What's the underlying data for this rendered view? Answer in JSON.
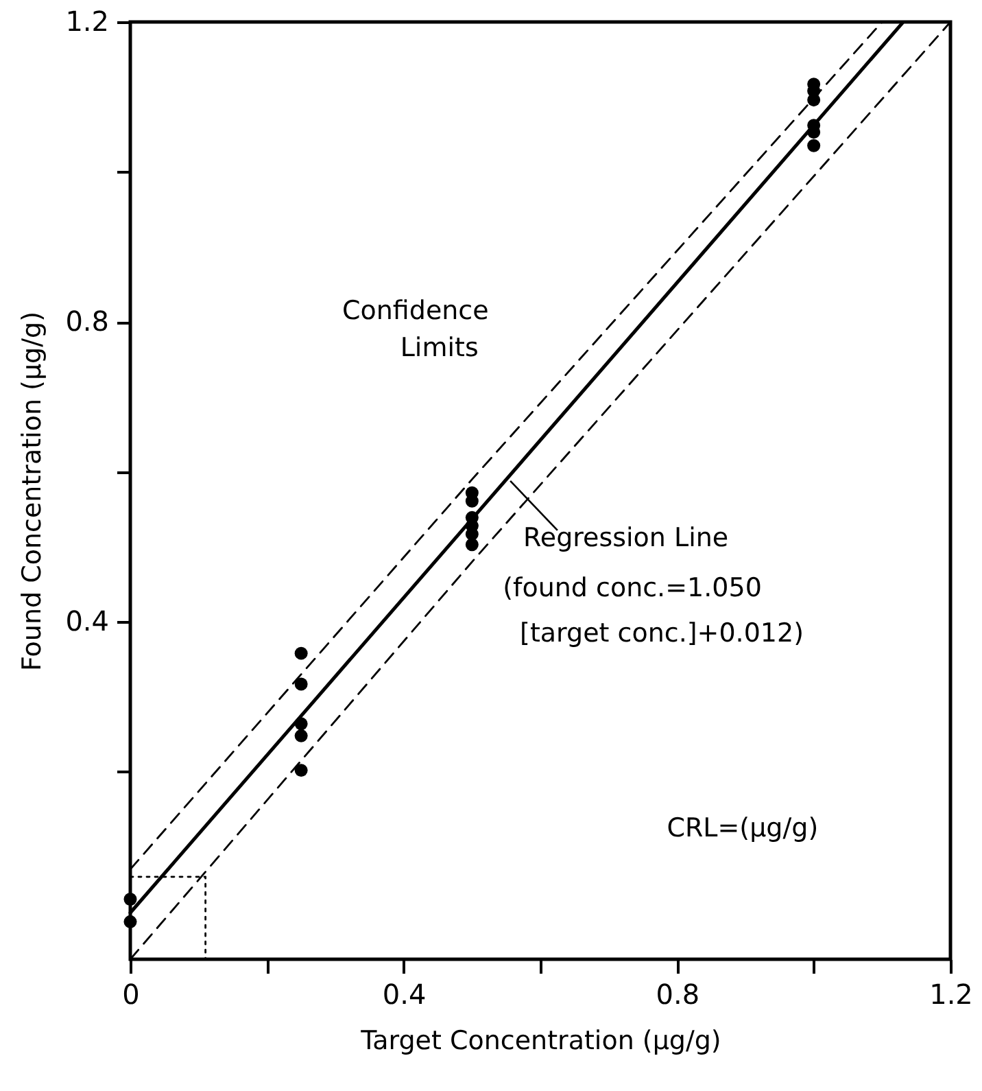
{
  "chart_data": {
    "type": "scatter",
    "xlabel": "Target Concentration (μg/g)",
    "ylabel": "Found Concentration (μg/g)",
    "xlim": [
      0,
      1.2
    ],
    "ylim": [
      -0.05,
      1.2
    ],
    "xticks": [
      0,
      {
        "value": 0.2,
        "label": null
      },
      0.4,
      {
        "value": 0.6,
        "label": null
      },
      0.8,
      {
        "value": 1.0,
        "label": null
      },
      1.2
    ],
    "yticks": [
      {
        "value": 0.2,
        "label": null
      },
      0.4,
      {
        "value": 0.6,
        "label": null
      },
      0.8,
      {
        "value": 1.0,
        "label": null
      },
      1.2
    ],
    "series": [
      {
        "color": "#000000",
        "marker": "circle",
        "x": [
          0,
          0,
          0.25,
          0.25,
          0.25,
          0.25,
          0.25,
          0.5,
          0.5,
          0.5,
          0.5,
          0.5,
          0.5,
          1.0,
          1.0,
          1.0,
          1.0,
          1.0,
          1.0
        ],
        "values": [
          0.03,
          0.0,
          0.358,
          0.317,
          0.264,
          0.248,
          0.202,
          0.572,
          0.561,
          0.539,
          0.528,
          0.517,
          0.503,
          1.117,
          1.108,
          1.096,
          1.062,
          1.053,
          1.035
        ]
      },
      {
        "type": "line",
        "color": "#000000",
        "line_style": "solid",
        "x": [
          0,
          1.13
        ],
        "values": [
          0.012,
          1.199
        ]
      },
      {
        "type": "line",
        "color": "#000000",
        "line_style": "dashed",
        "x": [
          0,
          0.5,
          1.1
        ],
        "values": [
          0.07,
          0.59,
          1.2
        ]
      },
      {
        "type": "line",
        "color": "#000000",
        "line_style": "dashed",
        "x": [
          0,
          0.5,
          1.2
        ],
        "values": [
          -0.05,
          0.48,
          1.2
        ]
      },
      {
        "type": "line",
        "color": "#000000",
        "line_style": "dotted",
        "x": [
          0,
          0.11,
          0.11
        ],
        "values": [
          0.06,
          0.06,
          -0.05
        ]
      }
    ],
    "annotations": [
      "Confidence",
      "Limits",
      {
        "text": "Regression Line",
        "x": 0.556,
        "y": 0.588
      },
      "(found conc.=1.050",
      "[target conc.]+0.012)",
      "CRL=(μg/g)"
    ]
  }
}
